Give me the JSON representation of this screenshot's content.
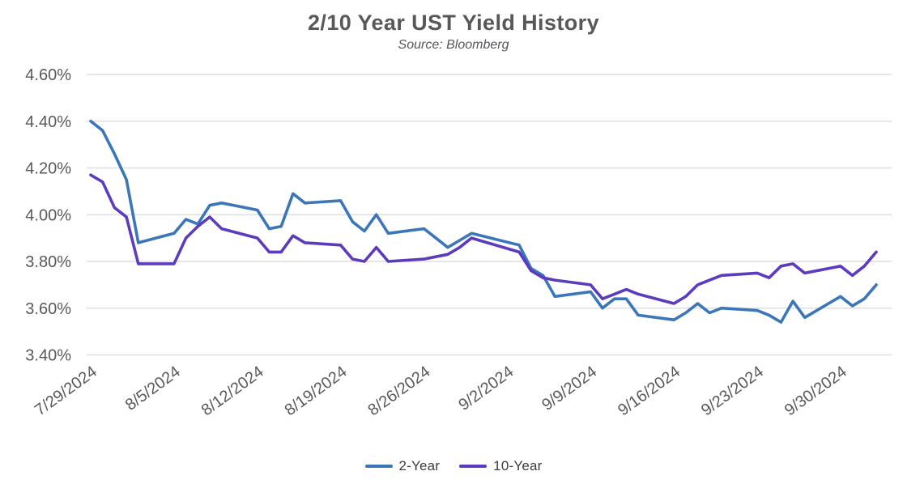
{
  "header": {
    "title": "2/10 Year UST Yield History",
    "subtitle": "Source: Bloomberg"
  },
  "colors": {
    "axis_text": "#595959",
    "gridline": "#e2e2e2",
    "title_text": "#58585a",
    "series_2_year": "#3b76b9",
    "series_10_year": "#5c3bbe"
  },
  "chart_data": {
    "type": "line",
    "title": "2/10 Year UST Yield History",
    "subtitle": "Source: Bloomberg",
    "xlabel": "",
    "ylabel": "",
    "grid": "horizontal",
    "legend_position": "bottom",
    "ylim": [
      3.4,
      4.6
    ],
    "y_step": 0.2,
    "y_tick_labels": [
      "4.60%",
      "4.40%",
      "4.20%",
      "4.00%",
      "3.80%",
      "3.60%",
      "3.40%"
    ],
    "x_tick_labels": [
      "7/29/2024",
      "8/5/2024",
      "8/12/2024",
      "8/19/2024",
      "8/26/2024",
      "9/2/2024",
      "9/9/2024",
      "9/16/2024",
      "9/23/2024",
      "9/30/2024"
    ],
    "x_axis_type": "date",
    "x_range": [
      "7/29/2024",
      "10/3/2024"
    ],
    "dates": [
      "7/29/2024",
      "7/30/2024",
      "7/31/2024",
      "8/1/2024",
      "8/2/2024",
      "8/5/2024",
      "8/6/2024",
      "8/7/2024",
      "8/8/2024",
      "8/9/2024",
      "8/12/2024",
      "8/13/2024",
      "8/14/2024",
      "8/15/2024",
      "8/16/2024",
      "8/19/2024",
      "8/20/2024",
      "8/21/2024",
      "8/22/2024",
      "8/23/2024",
      "8/26/2024",
      "8/27/2024",
      "8/28/2024",
      "8/29/2024",
      "8/30/2024",
      "9/3/2024",
      "9/4/2024",
      "9/5/2024",
      "9/6/2024",
      "9/9/2024",
      "9/10/2024",
      "9/11/2024",
      "9/12/2024",
      "9/13/2024",
      "9/16/2024",
      "9/17/2024",
      "9/18/2024",
      "9/19/2024",
      "9/20/2024",
      "9/23/2024",
      "9/24/2024",
      "9/25/2024",
      "9/26/2024",
      "9/27/2024",
      "9/30/2024",
      "10/1/2024",
      "10/2/2024",
      "10/3/2024"
    ],
    "series": [
      {
        "name": "2-Year",
        "color": "#3b76b9",
        "values": [
          4.4,
          4.36,
          4.26,
          4.15,
          3.88,
          3.92,
          3.98,
          3.96,
          4.04,
          4.05,
          4.02,
          3.94,
          3.95,
          4.09,
          4.05,
          4.06,
          3.97,
          3.93,
          4.0,
          3.92,
          3.94,
          3.9,
          3.86,
          3.89,
          3.92,
          3.87,
          3.77,
          3.74,
          3.65,
          3.67,
          3.6,
          3.64,
          3.64,
          3.57,
          3.55,
          3.58,
          3.62,
          3.58,
          3.6,
          3.59,
          3.57,
          3.54,
          3.63,
          3.56,
          3.65,
          3.61,
          3.64,
          3.7
        ]
      },
      {
        "name": "10-Year",
        "color": "#5c3bbe",
        "values": [
          4.17,
          4.14,
          4.03,
          3.99,
          3.79,
          3.79,
          3.9,
          3.95,
          3.99,
          3.94,
          3.9,
          3.84,
          3.84,
          3.91,
          3.88,
          3.87,
          3.81,
          3.8,
          3.86,
          3.8,
          3.81,
          3.82,
          3.83,
          3.86,
          3.9,
          3.84,
          3.76,
          3.73,
          3.72,
          3.7,
          3.64,
          3.66,
          3.68,
          3.66,
          3.62,
          3.65,
          3.7,
          3.72,
          3.74,
          3.75,
          3.73,
          3.78,
          3.79,
          3.75,
          3.78,
          3.74,
          3.78,
          3.84
        ]
      }
    ]
  }
}
